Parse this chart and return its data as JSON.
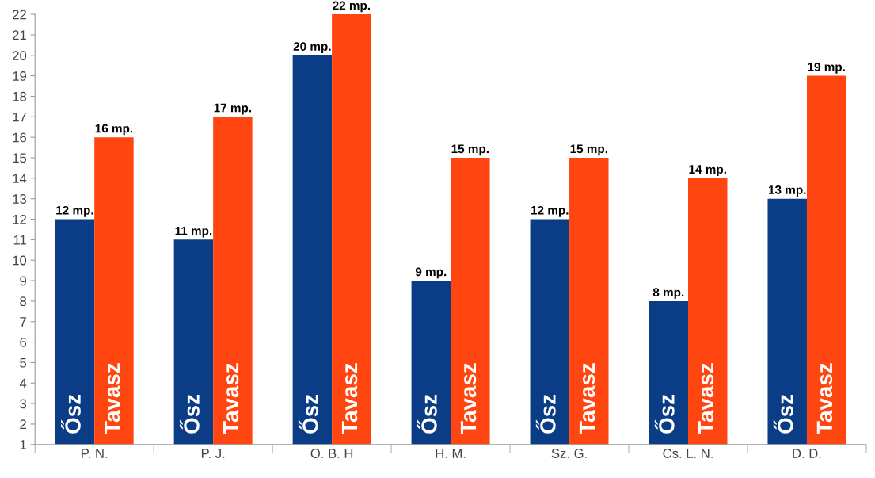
{
  "chart_data": {
    "type": "bar",
    "categories": [
      "P. N.",
      "P. J.",
      "O. B. H",
      "H. M.",
      "Sz. G.",
      "Cs. L. N.",
      "D. D."
    ],
    "series": [
      {
        "name": "Ősz",
        "color": "#0b3d86",
        "values": [
          12,
          11,
          20,
          9,
          12,
          8,
          13
        ],
        "value_labels": [
          "12 mp.",
          "11 mp.",
          "20 mp.",
          "9 mp.",
          "12 mp.",
          "8 mp.",
          "13 mp."
        ]
      },
      {
        "name": "Tavasz",
        "color": "#ff4510",
        "values": [
          16,
          17,
          22,
          15,
          15,
          14,
          19
        ],
        "value_labels": [
          "16 mp.",
          "17 mp.",
          "22 mp.",
          "15 mp.",
          "15 mp.",
          "14 mp.",
          "19 mp."
        ]
      }
    ],
    "ylim": [
      1,
      22
    ],
    "yticks": [
      1,
      2,
      3,
      4,
      5,
      6,
      7,
      8,
      9,
      10,
      11,
      12,
      13,
      14,
      15,
      16,
      17,
      18,
      19,
      20,
      21,
      22
    ],
    "grid": false,
    "legend": false
  }
}
